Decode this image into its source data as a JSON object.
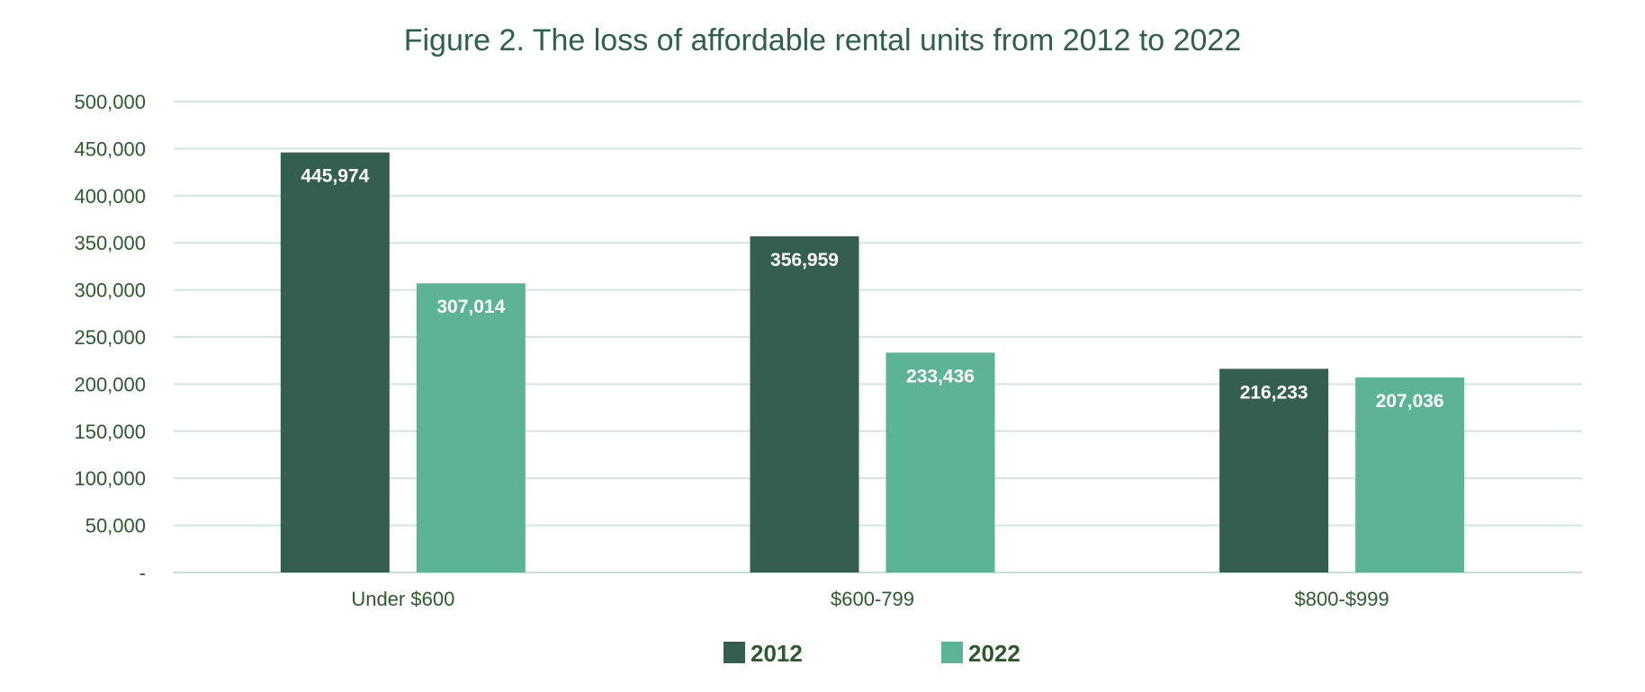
{
  "chart_data": {
    "type": "bar",
    "title": "Figure 2. The loss of affordable rental units from 2012 to 2022",
    "categories": [
      "Under $600",
      "$600-799",
      "$800-$999"
    ],
    "series": [
      {
        "name": "2012",
        "color": "#345e50",
        "values": [
          445974,
          356959,
          216233
        ],
        "labels": [
          "445,974",
          "356,959",
          "216,233"
        ]
      },
      {
        "name": "2022",
        "color": "#5db396",
        "values": [
          307014,
          233436,
          207036
        ],
        "labels": [
          "307,014",
          "233,436",
          "207,036"
        ]
      }
    ],
    "ylim": [
      0,
      500000
    ],
    "yticks": [
      0,
      50000,
      100000,
      150000,
      200000,
      250000,
      300000,
      350000,
      400000,
      450000,
      500000
    ],
    "ytick_labels": [
      "-",
      "50,000",
      "100,000",
      "150,000",
      "200,000",
      "250,000",
      "300,000",
      "350,000",
      "400,000",
      "450,000",
      "500,000"
    ],
    "grid": true,
    "legend_position": "bottom",
    "xlabel": "",
    "ylabel": ""
  }
}
